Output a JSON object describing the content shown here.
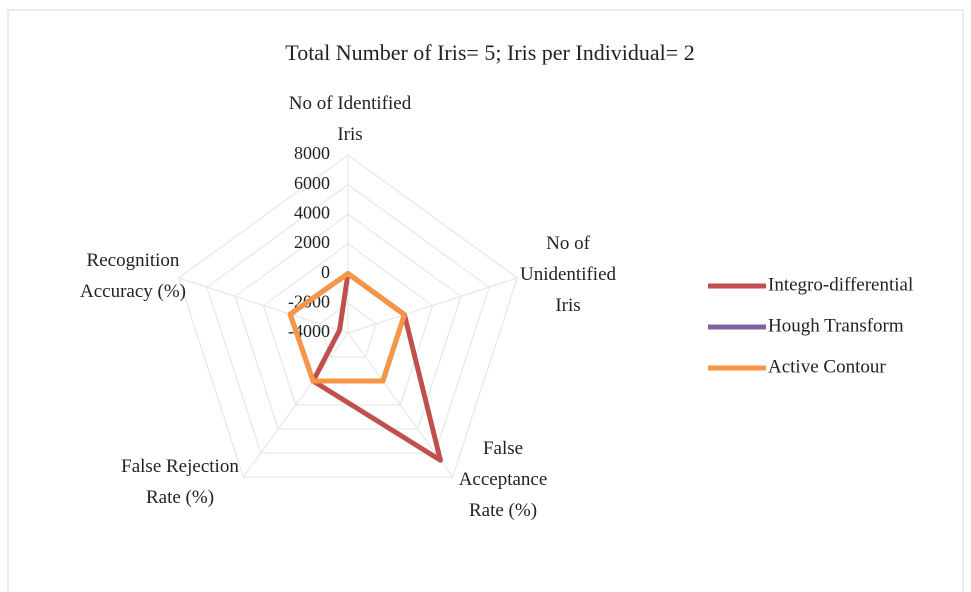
{
  "chart_data": {
    "type": "radar",
    "title": "Total Number of Iris= 5; Iris per Individual= 2",
    "categories": [
      "No of Identified\nIris",
      "No of\nUnidentified\nIris",
      "False\nAcceptance\nRate (%)",
      "False Rejection\nRate (%)",
      "Recognition\nAccuracy (%)"
    ],
    "series": [
      {
        "name": "Integro-differential",
        "color": "#c0504d",
        "values": [
          5,
          0,
          6600,
          0,
          -3400
        ]
      },
      {
        "name": "Hough Transform",
        "color": "#8064a2",
        "values": [
          5,
          0,
          0,
          0,
          100
        ]
      },
      {
        "name": "Active Contour",
        "color": "#f79646",
        "values": [
          5,
          0,
          0,
          0,
          100
        ]
      }
    ],
    "ylim": [
      -4000,
      8000
    ],
    "yticks": [
      -4000,
      -2000,
      0,
      2000,
      4000,
      6000,
      8000
    ],
    "grid": true,
    "legend": "right"
  }
}
